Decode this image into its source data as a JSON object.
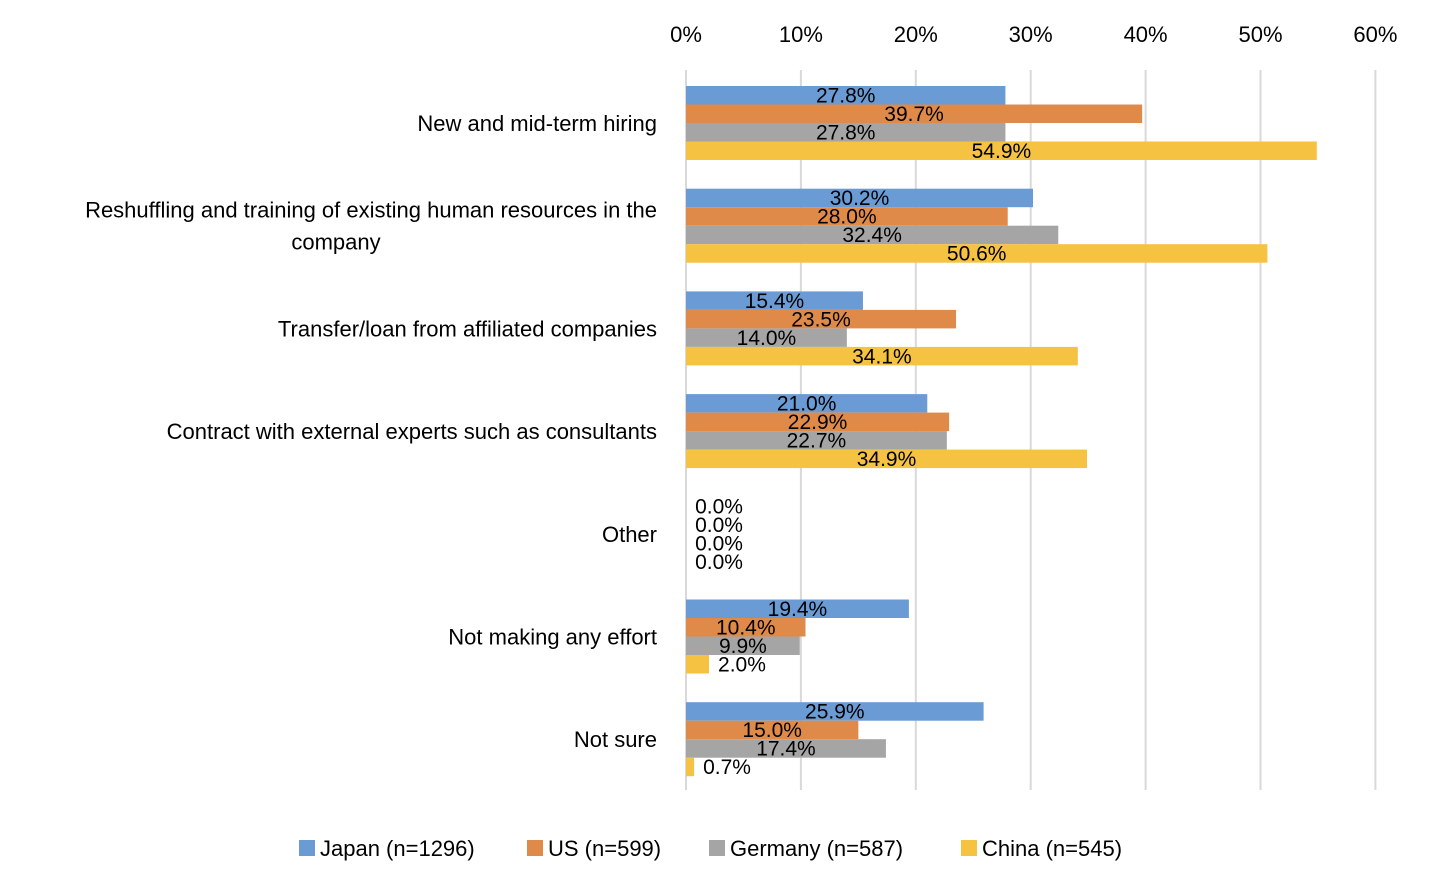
{
  "chart_data": {
    "type": "bar",
    "orientation": "horizontal",
    "title": "",
    "xlabel": "",
    "ylabel": "",
    "xlim": [
      0,
      60
    ],
    "xticks": [
      "0%",
      "10%",
      "20%",
      "30%",
      "40%",
      "50%",
      "60%"
    ],
    "x_axis_position": "top",
    "grid": true,
    "legend_position": "bottom",
    "categories": [
      "New and mid-term hiring",
      "Reshuffling and training of existing human resources in the company",
      "Transfer/loan from affiliated companies",
      "Contract with external experts such as consultants",
      "Other",
      "Not making any effort",
      "Not sure"
    ],
    "category_lines": [
      [
        "New and mid-term hiring"
      ],
      [
        "Reshuffling and training of existing human resources in the",
        "company"
      ],
      [
        "Transfer/loan from affiliated companies"
      ],
      [
        "Contract with external experts such as consultants"
      ],
      [
        "Other"
      ],
      [
        "Not making any effort"
      ],
      [
        "Not sure"
      ]
    ],
    "series": [
      {
        "name": "Japan (n=1296)",
        "color": "#6a9bd4",
        "values": [
          27.8,
          30.2,
          15.4,
          21.0,
          0.0,
          19.4,
          25.9
        ],
        "labels": [
          "27.8%",
          "30.2%",
          "15.4%",
          "21.0%",
          "0.0%",
          "19.4%",
          "25.9%"
        ]
      },
      {
        "name": "US (n=599)",
        "color": "#e08a4a",
        "values": [
          39.7,
          28.0,
          23.5,
          22.9,
          0.0,
          10.4,
          15.0
        ],
        "labels": [
          "39.7%",
          "28.0%",
          "23.5%",
          "22.9%",
          "0.0%",
          "10.4%",
          "15.0%"
        ]
      },
      {
        "name": "Germany (n=587)",
        "color": "#a5a5a5",
        "values": [
          27.8,
          32.4,
          14.0,
          22.7,
          0.0,
          9.9,
          17.4
        ],
        "labels": [
          "27.8%",
          "32.4%",
          "14.0%",
          "22.7%",
          "0.0%",
          "9.9%",
          "17.4%"
        ]
      },
      {
        "name": "China (n=545)",
        "color": "#f5c242",
        "values": [
          54.9,
          50.6,
          34.1,
          34.9,
          0.0,
          2.0,
          0.7
        ],
        "labels": [
          "54.9%",
          "50.6%",
          "34.1%",
          "34.9%",
          "0.0%",
          "2.0%",
          "0.7%"
        ]
      }
    ]
  }
}
